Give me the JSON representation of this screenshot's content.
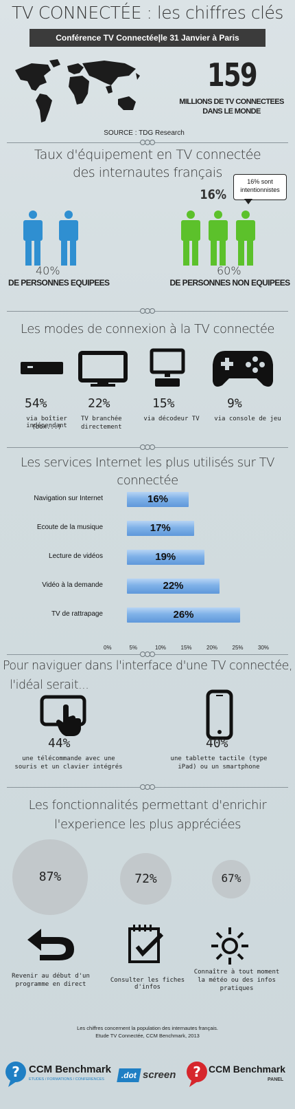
{
  "header": {
    "title": "TV CONNECTÉE : les chiffres clés",
    "banner": "Conférence TV Connectée|le 31 Janvier à Paris"
  },
  "world": {
    "number": "159",
    "caption_l1": "MILLIONS DE TV CONNECTEES",
    "caption_l2": "DANS LE MONDE",
    "source": "SOURCE : TDG Research"
  },
  "equipment": {
    "title_l1": "Taux d'équipement en TV connectée",
    "title_l2": "des internautes français",
    "bubble_pct": "16%",
    "bubble_text": "16% sont intentionnistes",
    "left_pct": "40%",
    "left_label": "DE PERSONNES EQUIPEES",
    "right_pct": "60%",
    "right_label": "DE PERSONNES NON EQUIPEES",
    "colors": {
      "equipped": "#2f8fd1",
      "non_equipped": "#5cc12b"
    }
  },
  "connection": {
    "title": "Les modes de connexion à la TV connectée",
    "items": [
      {
        "icon": "set-top-box-icon",
        "pct": "54%",
        "label_l1": "via boîtier indépendant",
        "label_l2": "(box...)"
      },
      {
        "icon": "tv-icon",
        "pct": "22%",
        "label_l1": "TV branchée",
        "label_l2": "directement"
      },
      {
        "icon": "decoder-icon",
        "pct": "15%",
        "label_l1": "via décodeur TV",
        "label_l2": ""
      },
      {
        "icon": "gamepad-icon",
        "pct": "9%",
        "label_l1": "via console de jeu",
        "label_l2": ""
      }
    ]
  },
  "services": {
    "title_l1": "Les services Internet les plus utilisés sur TV",
    "title_l2": "connectée",
    "chart_data": {
      "type": "bar",
      "orientation": "horizontal",
      "categories": [
        "Navigation sur Internet",
        "Ecoute de la musique",
        "Lecture de vidéos",
        "Vidéo à la demande",
        "TV de rattrapage"
      ],
      "values": [
        16,
        17,
        19,
        22,
        26
      ],
      "value_labels": [
        "16%",
        "17%",
        "19%",
        "22%",
        "26%"
      ],
      "xlim": [
        0,
        30
      ],
      "ticks": [
        "0%",
        "5%",
        "10%",
        "15%",
        "20%",
        "25%",
        "30%"
      ],
      "bar_color": "#7fb1e8"
    }
  },
  "navigation": {
    "title_l1": "Pour naviguer dans l'interface d'une TV connectée,",
    "title_l2": "l'idéal serait...",
    "items": [
      {
        "icon": "touchpad-icon",
        "pct": "44%",
        "label_l1": "une télécommande avec une",
        "label_l2": "souris et un clavier intégrés"
      },
      {
        "icon": "smartphone-icon",
        "pct": "40%",
        "label_l1": "une tablette tactile (type",
        "label_l2": "iPad) ou un smartphone"
      }
    ]
  },
  "features": {
    "title_l1": "Les fonctionnalités permettant d'enrichir",
    "title_l2": "l'experience les plus appréciées",
    "items": [
      {
        "pct": "87%",
        "value": 87,
        "icon": "return-arrow-icon",
        "label_l1": "Revenir au début d'un",
        "label_l2": "programme en direct",
        "label_l3": ""
      },
      {
        "pct": "72%",
        "value": 72,
        "icon": "checklist-icon",
        "label_l1": "Consulter les fiches d'infos",
        "label_l2": "",
        "label_l3": ""
      },
      {
        "pct": "67%",
        "value": 67,
        "icon": "sun-icon",
        "label_l1": "Connaître à tout moment",
        "label_l2": "la météo ou des infos",
        "label_l3": "pratiques"
      }
    ]
  },
  "footer": {
    "note_l1": "Les chiffres concernent la population des internautes français.",
    "note_l2": "Etude TV Connectée, CCM Benchmark, 2013",
    "logo1": "CCM Benchmark",
    "logo1_sub": "ETUDES / FORMATIONS / CONFERENCES",
    "logo2_a": ".dot",
    "logo2_b": "screen",
    "logo3": "CCM Benchmark",
    "logo3_sub": "PANEL"
  }
}
